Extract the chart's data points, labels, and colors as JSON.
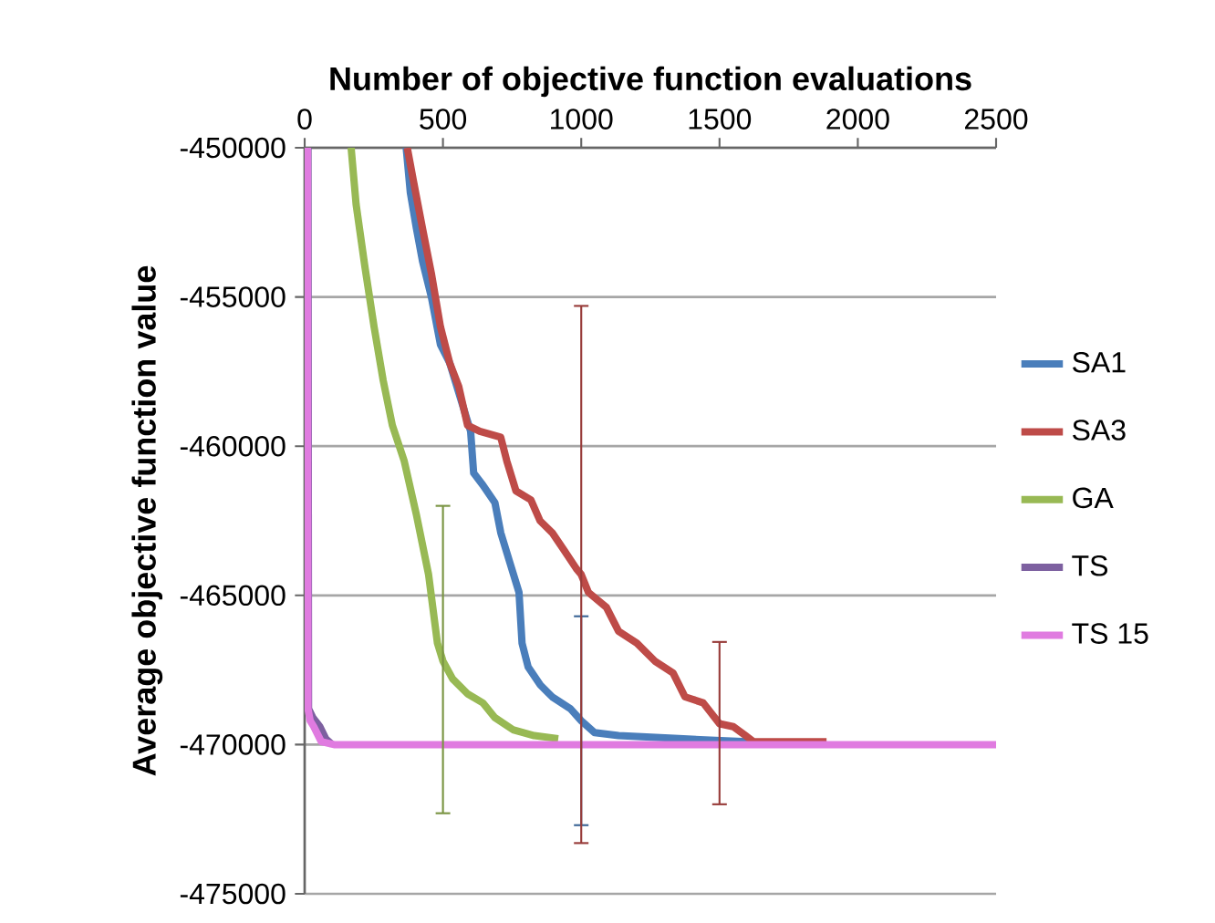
{
  "chart_data": {
    "type": "line",
    "xlabel": "Number of objective function evaluations",
    "ylabel": "Average objective function value",
    "xlim": [
      0,
      2500
    ],
    "xticks": [
      0,
      500,
      1000,
      1500,
      2000,
      2500
    ],
    "ylim": [
      -475000,
      -450000
    ],
    "yticks": [
      -475000,
      -470000,
      -465000,
      -460000,
      -455000,
      -450000
    ],
    "grid": "y",
    "legend": "right",
    "marker": "none",
    "line_style": "solid",
    "series": [
      {
        "name": "SA1",
        "color": "#4a7ebb",
        "x": [
          367,
          382,
          404,
          426,
          458,
          491,
          524,
          557,
          600,
          611,
          644,
          688,
          709,
          742,
          775,
          786,
          808,
          852,
          895,
          961,
          1000,
          1048,
          1135,
          1353,
          1600
        ],
        "values": [
          -450000,
          -451500,
          -452700,
          -453800,
          -455000,
          -456600,
          -457200,
          -458200,
          -459500,
          -460900,
          -461300,
          -461900,
          -462900,
          -463900,
          -464900,
          -466600,
          -467400,
          -468000,
          -468400,
          -468800,
          -469200,
          -469600,
          -469700,
          -469800,
          -469900
        ],
        "errors": [
          null,
          null,
          null,
          null,
          null,
          null,
          null,
          null,
          null,
          null,
          null,
          null,
          null,
          null,
          null,
          null,
          null,
          null,
          null,
          null,
          [
            -472700,
            -465700
          ],
          null,
          null,
          null,
          null
        ]
      },
      {
        "name": "SA3",
        "color": "#be4b48",
        "x": [
          371,
          393,
          426,
          458,
          491,
          524,
          557,
          589,
          633,
          709,
          731,
          764,
          818,
          851,
          895,
          939,
          982,
          1000,
          1026,
          1091,
          1135,
          1201,
          1266,
          1332,
          1375,
          1441,
          1500,
          1550,
          1594,
          1623,
          1887
        ],
        "values": [
          -450000,
          -451100,
          -452700,
          -454200,
          -456000,
          -457200,
          -458000,
          -459300,
          -459500,
          -459700,
          -460500,
          -461500,
          -461800,
          -462500,
          -462900,
          -463500,
          -464100,
          -464300,
          -464900,
          -465400,
          -466200,
          -466600,
          -467200,
          -467600,
          -468400,
          -468600,
          -469300,
          -469400,
          -469700,
          -469900,
          -469900
        ],
        "errors": [
          null,
          null,
          null,
          null,
          null,
          null,
          null,
          null,
          null,
          null,
          null,
          null,
          null,
          null,
          null,
          null,
          null,
          [
            -473300,
            -455300
          ],
          null,
          null,
          null,
          null,
          null,
          null,
          null,
          null,
          [
            -472000,
            -466560
          ],
          null,
          null,
          null,
          null
        ]
      },
      {
        "name": "GA",
        "color": "#98b954",
        "x": [
          168,
          186,
          218,
          251,
          284,
          317,
          360,
          404,
          448,
          480,
          500,
          535,
          589,
          644,
          688,
          753,
          830,
          917
        ],
        "values": [
          -450000,
          -451900,
          -454000,
          -456000,
          -457800,
          -459300,
          -460500,
          -462300,
          -464300,
          -466600,
          -467200,
          -467800,
          -468300,
          -468600,
          -469100,
          -469500,
          -469700,
          -469800
        ],
        "errors": [
          null,
          null,
          null,
          null,
          null,
          null,
          null,
          null,
          null,
          null,
          [
            -472300,
            -462000
          ],
          null,
          null,
          null,
          null,
          null,
          null,
          null
        ]
      },
      {
        "name": "TS",
        "color": "#7d60a0",
        "x": [
          12,
          14,
          30,
          55,
          76,
          100
        ],
        "values": [
          -450000,
          -468800,
          -469100,
          -469400,
          -469800,
          -470000
        ]
      },
      {
        "name": "TS 15",
        "color": "#e07be0",
        "x": [
          10,
          12,
          20,
          33,
          60,
          106,
          2500
        ],
        "values": [
          -450000,
          -468800,
          -469200,
          -469400,
          -469900,
          -470000,
          -470000
        ]
      }
    ]
  }
}
